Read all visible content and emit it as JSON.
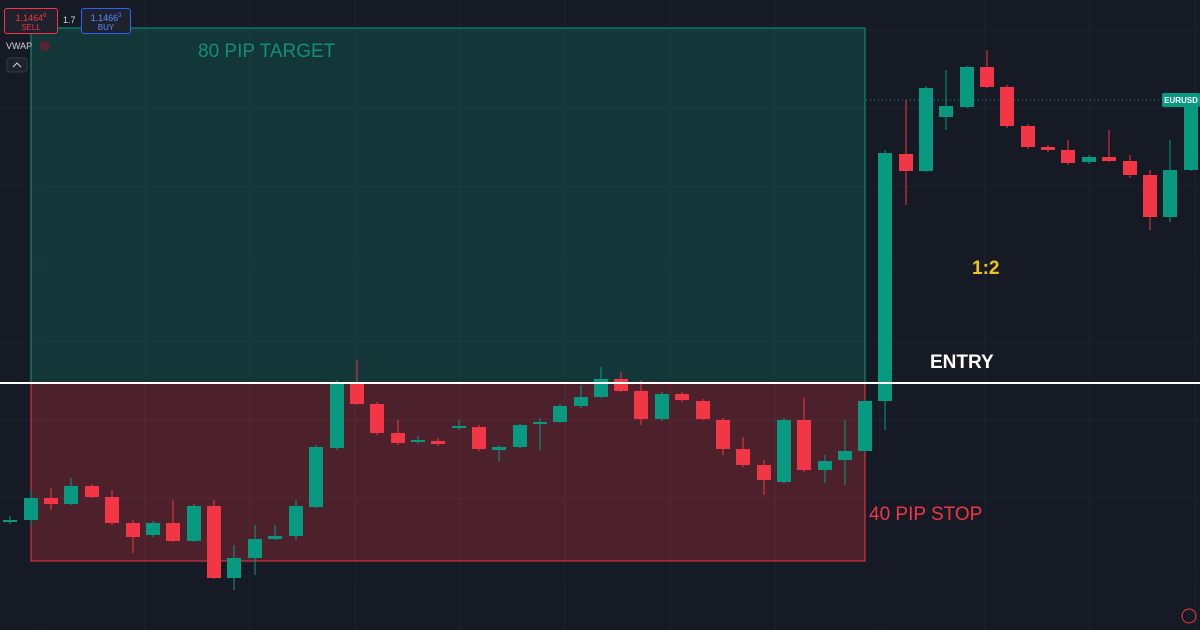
{
  "trade_panel": {
    "sell_price": "1.1464",
    "sell_pip": "6",
    "sell_label": "SELL",
    "spread": "1.7",
    "buy_price": "1.1466",
    "buy_pip": "3",
    "buy_label": "BUY"
  },
  "indicator": "VWAP",
  "annotations": {
    "target": "80 PIP TARGET",
    "stop": "40 PIP STOP",
    "entry": "ENTRY",
    "ratio": "1:2"
  },
  "symbol_tag": "EURUSD"
}
